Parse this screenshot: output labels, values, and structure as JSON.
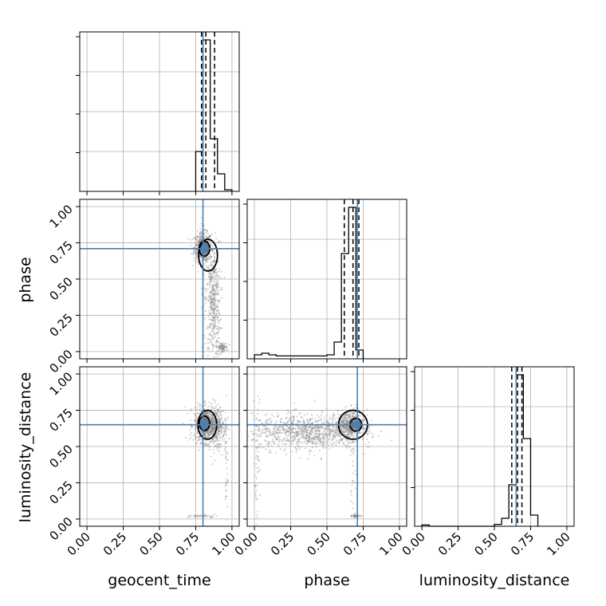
{
  "chart_data": {
    "type": "corner",
    "title": "",
    "parameters": [
      "geocent_time",
      "phase",
      "luminosity_distance"
    ],
    "truths": [
      0.8,
      0.71,
      0.65
    ],
    "tick_values": [
      0.0,
      0.25,
      0.5,
      0.75,
      1.0
    ],
    "tick_labels": [
      "0.00",
      "0.25",
      "0.50",
      "0.75",
      "1.00"
    ],
    "axis_range": [
      -0.05,
      1.05
    ],
    "grid": true,
    "truth_color": "#4682b4",
    "contour_color": "#000000",
    "point_color": "#808080",
    "histograms": [
      {
        "parameter": "geocent_time",
        "bin_edges": [
          0.75,
          0.8,
          0.85,
          0.9,
          0.95,
          1.0
        ],
        "counts": [
          0.25,
          0.95,
          0.33,
          0.11,
          0.01
        ],
        "ymax": 1.0,
        "quantiles": [
          0.79,
          0.82,
          0.88
        ]
      },
      {
        "parameter": "phase",
        "bin_edges": [
          0.0,
          0.05,
          0.1,
          0.15,
          0.2,
          0.25,
          0.3,
          0.35,
          0.4,
          0.45,
          0.5,
          0.55,
          0.6,
          0.65,
          0.7,
          0.75
        ],
        "counts": [
          0.025,
          0.035,
          0.025,
          0.018,
          0.018,
          0.018,
          0.018,
          0.018,
          0.018,
          0.018,
          0.025,
          0.105,
          0.66,
          0.95,
          0.055
        ],
        "ymax": 1.0,
        "quantiles": [
          0.62,
          0.68,
          0.72
        ]
      },
      {
        "parameter": "luminosity_distance",
        "bin_edges": [
          0.0,
          0.05,
          0.1,
          0.15,
          0.2,
          0.25,
          0.3,
          0.35,
          0.4,
          0.45,
          0.5,
          0.55,
          0.6,
          0.65,
          0.7,
          0.75,
          0.8
        ],
        "counts": [
          0.008,
          0.0,
          0.0,
          0.0,
          0.0,
          0.0,
          0.0,
          0.0,
          0.0,
          0.0,
          0.012,
          0.05,
          0.26,
          0.95,
          0.55,
          0.07
        ],
        "ymax": 1.0,
        "quantiles": [
          0.62,
          0.66,
          0.69
        ]
      }
    ],
    "scatter_panels": [
      {
        "x": "geocent_time",
        "y": "phase",
        "mode": [
          0.81,
          0.71
        ],
        "contours": [
          {
            "center": [
              0.81,
              0.71
            ],
            "rx": 0.036,
            "ry": 0.052
          },
          {
            "center": [
              0.835,
              0.665
            ],
            "rx": 0.065,
            "ry": 0.11
          }
        ],
        "points": [
          {
            "x": 0.8,
            "y": 0.72,
            "sx": 0.03,
            "sy": 0.05,
            "n": 500
          },
          {
            "x": 0.87,
            "y": 0.35,
            "sx": 0.025,
            "sy": 0.2,
            "n": 450
          },
          {
            "x": 0.93,
            "y": 0.03,
            "sx": 0.02,
            "sy": 0.015,
            "n": 80
          },
          {
            "x": 0.8,
            "y": 0.45,
            "sx": 0.005,
            "sy": 0.3,
            "n": 25
          }
        ]
      },
      {
        "x": "geocent_time",
        "y": "luminosity_distance",
        "mode": [
          0.81,
          0.65
        ],
        "contours": [
          {
            "center": [
              0.81,
              0.66
            ],
            "rx": 0.036,
            "ry": 0.05
          },
          {
            "center": [
              0.83,
              0.65
            ],
            "rx": 0.065,
            "ry": 0.1
          }
        ],
        "points": [
          {
            "x": 0.83,
            "y": 0.65,
            "sx": 0.045,
            "sy": 0.06,
            "n": 800
          },
          {
            "x": 0.9,
            "y": 0.62,
            "sx": 0.03,
            "sy": 0.08,
            "n": 150
          },
          {
            "x": 0.8,
            "y": 0.02,
            "sx": 0.05,
            "sy": 0.005,
            "n": 40
          },
          {
            "x": 0.96,
            "y": 0.4,
            "sx": 0.005,
            "sy": 0.22,
            "n": 40
          }
        ]
      },
      {
        "x": "phase",
        "y": "luminosity_distance",
        "mode": [
          0.71,
          0.65
        ],
        "contours": [
          {
            "center": [
              0.7,
              0.65
            ],
            "rx": 0.04,
            "ry": 0.045
          },
          {
            "center": [
              0.68,
              0.65
            ],
            "rx": 0.1,
            "ry": 0.1
          }
        ],
        "points": [
          {
            "x": 0.35,
            "y": 0.6,
            "sx": 0.18,
            "sy": 0.06,
            "n": 900
          },
          {
            "x": 0.66,
            "y": 0.65,
            "sx": 0.05,
            "sy": 0.05,
            "n": 500
          },
          {
            "x": 0.02,
            "y": 0.35,
            "sx": 0.01,
            "sy": 0.25,
            "n": 60
          },
          {
            "x": 0.7,
            "y": 0.02,
            "sx": 0.015,
            "sy": 0.004,
            "n": 40
          },
          {
            "x": 0.68,
            "y": 0.3,
            "sx": 0.01,
            "sy": 0.2,
            "n": 30
          }
        ]
      }
    ]
  }
}
